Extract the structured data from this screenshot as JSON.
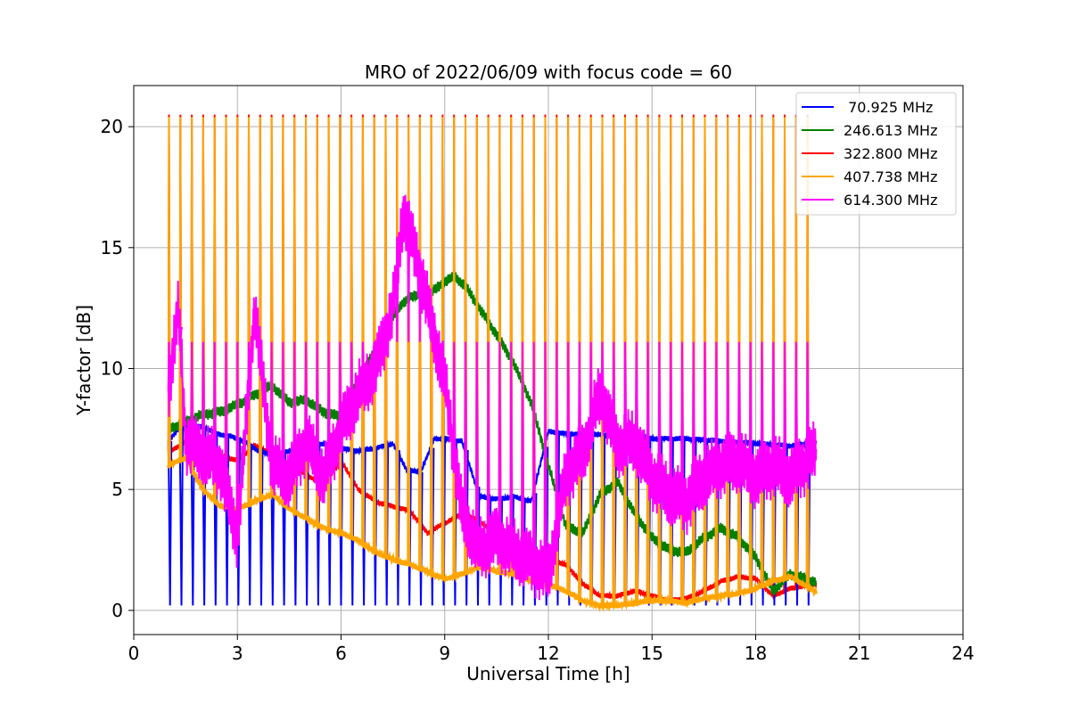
{
  "chart_data": {
    "type": "line",
    "title": "MRO of 2022/06/09 with focus code = 60",
    "xlabel": "Universal Time [h]",
    "ylabel": "Y-factor [dB]",
    "xlim": [
      0,
      24
    ],
    "ylim": [
      -1,
      21.7
    ],
    "x_ticks": [
      0,
      3,
      6,
      9,
      12,
      15,
      18,
      21,
      24
    ],
    "y_ticks": [
      0,
      5,
      10,
      15,
      20
    ],
    "grid": true,
    "legend_position": "top-right",
    "sweep_range_h": [
      1.0,
      19.75
    ],
    "sweep_period_h": 0.33,
    "series": [
      {
        "name": " 70.925 MHz",
        "color": "#0000ff",
        "sweep_peak_db": 5,
        "sweep_low_db": 0.2,
        "x": [
          1.0,
          1.3,
          1.6,
          2.0,
          2.4,
          2.8,
          3.2,
          3.6,
          4.0,
          4.5,
          5.0,
          5.5,
          6.0,
          6.5,
          7.0,
          7.5,
          7.9,
          8.3,
          8.7,
          9.0,
          9.5,
          10.0,
          10.5,
          11.0,
          11.5,
          12.0,
          12.5,
          13.0,
          14.0,
          15.0,
          16.0,
          17.0,
          18.0,
          19.0,
          19.7
        ],
        "y": [
          7.0,
          7.5,
          7.6,
          7.6,
          7.3,
          7.2,
          7.0,
          6.6,
          6.4,
          6.6,
          6.8,
          6.9,
          6.7,
          6.6,
          6.7,
          6.9,
          5.8,
          5.7,
          7.1,
          7.1,
          7.0,
          4.7,
          4.6,
          4.7,
          4.5,
          7.4,
          7.3,
          7.3,
          7.2,
          7.1,
          7.1,
          7.0,
          6.9,
          6.8,
          6.9
        ]
      },
      {
        "name": "246.613 MHz",
        "color": "#008000",
        "x": [
          1.0,
          1.5,
          2.0,
          2.5,
          3.0,
          3.5,
          4.0,
          4.5,
          5.0,
          5.5,
          6.0,
          6.5,
          7.0,
          7.5,
          8.0,
          8.5,
          9.0,
          9.3,
          9.6,
          10.0,
          10.5,
          11.0,
          11.5,
          12.0,
          12.5,
          13.0,
          13.5,
          14.0,
          14.5,
          15.0,
          15.5,
          16.0,
          16.5,
          17.0,
          17.5,
          18.0,
          18.5,
          19.0,
          19.7
        ],
        "y": [
          7.5,
          7.8,
          8.1,
          8.2,
          8.5,
          8.9,
          9.3,
          8.6,
          8.7,
          8.2,
          8.0,
          9.5,
          10.8,
          12.2,
          13.0,
          13.0,
          13.6,
          13.8,
          13.4,
          12.5,
          11.4,
          10.2,
          8.6,
          6.0,
          3.5,
          3.2,
          4.8,
          5.3,
          4.0,
          3.0,
          2.5,
          2.4,
          3.0,
          3.4,
          3.0,
          2.2,
          0.8,
          1.5,
          1.2
        ]
      },
      {
        "name": "322.800 MHz",
        "color": "#ff0000",
        "sweep_peak_db": 20.5,
        "x": [
          1.0,
          1.5,
          2.0,
          2.5,
          3.0,
          3.5,
          4.0,
          4.5,
          5.0,
          5.5,
          6.0,
          6.5,
          7.0,
          7.5,
          8.0,
          8.5,
          9.0,
          9.5,
          10.0,
          10.5,
          11.0,
          11.5,
          12.0,
          12.5,
          13.0,
          13.5,
          14.0,
          14.5,
          15.0,
          15.5,
          16.0,
          16.5,
          17.0,
          17.5,
          18.0,
          18.5,
          19.0,
          19.7
        ],
        "y": [
          6.5,
          7.0,
          6.8,
          6.4,
          6.2,
          6.8,
          6.5,
          6.0,
          5.6,
          5.2,
          6.2,
          5.0,
          4.5,
          4.3,
          4.1,
          3.2,
          3.6,
          4.0,
          3.7,
          3.1,
          2.8,
          2.5,
          2.1,
          1.9,
          1.1,
          0.6,
          0.6,
          0.8,
          0.6,
          0.4,
          0.5,
          0.8,
          1.2,
          1.4,
          1.3,
          0.6,
          0.9,
          1.1
        ]
      },
      {
        "name": "407.738 MHz",
        "color": "#ffa500",
        "sweep_peak_db": 20.4,
        "x": [
          1.0,
          1.5,
          2.0,
          2.5,
          3.0,
          3.5,
          4.0,
          4.5,
          5.0,
          5.5,
          6.0,
          6.5,
          7.0,
          7.5,
          8.0,
          8.5,
          9.0,
          9.5,
          10.0,
          10.5,
          11.0,
          11.5,
          12.0,
          12.5,
          13.0,
          13.5,
          14.0,
          14.5,
          15.0,
          15.5,
          16.0,
          16.5,
          17.0,
          17.5,
          18.0,
          18.5,
          19.0,
          19.7
        ],
        "y": [
          6.0,
          6.3,
          5.0,
          4.3,
          4.2,
          4.5,
          4.8,
          4.2,
          3.8,
          3.4,
          3.2,
          2.9,
          2.4,
          2.1,
          1.9,
          1.6,
          1.3,
          1.5,
          1.8,
          1.6,
          1.5,
          1.2,
          1.1,
          0.8,
          0.4,
          0.2,
          0.2,
          0.3,
          0.4,
          0.4,
          0.3,
          0.5,
          0.6,
          0.7,
          0.9,
          1.2,
          1.4,
          0.8
        ]
      },
      {
        "name": "614.300 MHz",
        "color": "#ff00ff",
        "sweep_peak_db": 11.1,
        "x": [
          1.0,
          1.3,
          1.5,
          2.0,
          2.5,
          3.0,
          3.5,
          4.0,
          4.5,
          5.0,
          5.5,
          6.0,
          6.5,
          7.0,
          7.5,
          7.8,
          8.2,
          8.6,
          9.0,
          9.5,
          10.0,
          10.5,
          11.0,
          11.5,
          12.0,
          12.5,
          13.0,
          13.5,
          14.0,
          14.5,
          15.0,
          15.5,
          16.0,
          16.5,
          17.0,
          17.5,
          18.0,
          18.5,
          19.0,
          19.7
        ],
        "y": [
          9.0,
          12.5,
          7.0,
          6.5,
          6.0,
          3.0,
          12.5,
          6.0,
          5.5,
          7.0,
          5.5,
          7.5,
          9.0,
          10.0,
          12.5,
          16.5,
          14.5,
          12.0,
          9.5,
          4.0,
          2.5,
          3.0,
          2.5,
          2.0,
          1.5,
          5.5,
          6.5,
          9.0,
          6.8,
          7.0,
          5.5,
          4.8,
          4.5,
          5.5,
          6.0,
          6.2,
          5.5,
          6.0,
          5.5,
          6.5
        ]
      }
    ]
  }
}
